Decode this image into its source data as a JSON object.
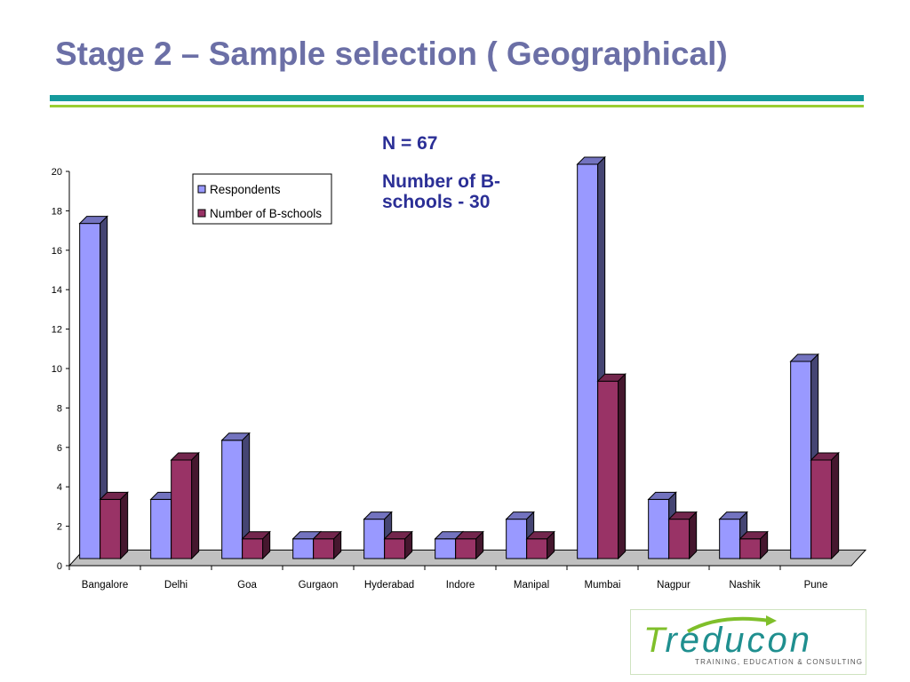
{
  "slide": {
    "title": "Stage 2 – Sample selection ( Geographical)",
    "annotation_n": "N = 67",
    "annotation_b": "Number of B-schools - 30"
  },
  "logo": {
    "wordmark_first": "T",
    "wordmark_rest": "reducon",
    "tagline": "TRAINING, EDUCATION & CONSULTING",
    "colors": {
      "teal": "#1f8f8f",
      "green": "#7fbf2a"
    }
  },
  "chart_data": {
    "type": "bar",
    "style": "3d-clustered",
    "categories": [
      "Bangalore",
      "Delhi",
      "Goa",
      "Gurgaon",
      "Hyderabad",
      "Indore",
      "Manipal",
      "Mumbai",
      "Nagpur",
      "Nashik",
      "Pune"
    ],
    "series": [
      {
        "name": "Respondents",
        "values": [
          17,
          3,
          6,
          1,
          2,
          1,
          2,
          20,
          3,
          2,
          10
        ],
        "color": "#9999ff"
      },
      {
        "name": "Number of B-schools",
        "values": [
          3,
          5,
          1,
          1,
          1,
          1,
          1,
          9,
          2,
          1,
          5
        ],
        "color": "#993366"
      }
    ],
    "ylim": [
      0,
      20
    ],
    "yticks": [
      "0",
      "2",
      "4",
      "6",
      "8",
      "10",
      "12",
      "14",
      "16",
      "18",
      "20"
    ],
    "legend_position": "top-left",
    "grid": false
  }
}
